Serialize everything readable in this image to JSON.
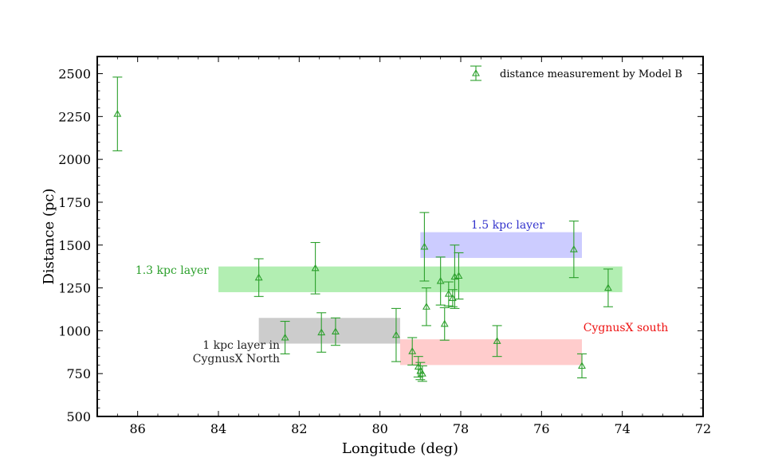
{
  "chart_data": {
    "type": "scatter",
    "title": "",
    "xlabel": "Longitude (deg)",
    "ylabel": "Distance (pc)",
    "xlim": [
      87,
      72
    ],
    "ylim": [
      500,
      2600
    ],
    "x_inverted": true,
    "x_ticks": [
      86,
      84,
      82,
      80,
      78,
      76,
      74,
      72
    ],
    "x_tick_labels": [
      "86",
      "84",
      "82",
      "80",
      "78",
      "76",
      "74",
      "72"
    ],
    "y_ticks": [
      500,
      750,
      1000,
      1250,
      1500,
      1750,
      2000,
      2250,
      2500
    ],
    "y_tick_labels": [
      "500",
      "750",
      "1000",
      "1250",
      "1500",
      "1750",
      "2000",
      "2250",
      "2500"
    ],
    "grid": false,
    "legend": {
      "position": "top-right",
      "entries": [
        "distance measurement by Model B"
      ]
    },
    "series": [
      {
        "name": "distance measurement by Model B",
        "marker": "open-triangle",
        "color": "#2ca02c",
        "points": [
          {
            "x": 86.5,
            "y": 2265,
            "err": 215
          },
          {
            "x": 83.0,
            "y": 1310,
            "err": 110
          },
          {
            "x": 82.35,
            "y": 960,
            "err": 95
          },
          {
            "x": 81.6,
            "y": 1365,
            "err": 150
          },
          {
            "x": 81.45,
            "y": 990,
            "err": 115
          },
          {
            "x": 81.1,
            "y": 995,
            "err": 80
          },
          {
            "x": 79.6,
            "y": 975,
            "err": 155
          },
          {
            "x": 79.2,
            "y": 880,
            "err": 80
          },
          {
            "x": 79.05,
            "y": 790,
            "err": 60
          },
          {
            "x": 79.0,
            "y": 765,
            "err": 50
          },
          {
            "x": 78.95,
            "y": 750,
            "err": 45
          },
          {
            "x": 78.9,
            "y": 1490,
            "err": 200
          },
          {
            "x": 78.85,
            "y": 1140,
            "err": 110
          },
          {
            "x": 78.5,
            "y": 1290,
            "err": 140
          },
          {
            "x": 78.4,
            "y": 1040,
            "err": 95
          },
          {
            "x": 78.3,
            "y": 1215,
            "err": 70
          },
          {
            "x": 78.2,
            "y": 1190,
            "err": 50
          },
          {
            "x": 78.15,
            "y": 1315,
            "err": 185
          },
          {
            "x": 78.05,
            "y": 1320,
            "err": 135
          },
          {
            "x": 77.1,
            "y": 940,
            "err": 90
          },
          {
            "x": 75.2,
            "y": 1475,
            "err": 165
          },
          {
            "x": 75.0,
            "y": 795,
            "err": 70
          },
          {
            "x": 74.35,
            "y": 1250,
            "err": 110
          }
        ]
      }
    ],
    "regions": [
      {
        "name": "1.5 kpc layer",
        "x": [
          79.0,
          75.0
        ],
        "y": [
          1425,
          1575
        ],
        "color": "#9999ff",
        "label": "1.5 kpc layer",
        "label_color": "#3333cc"
      },
      {
        "name": "1.3 kpc layer",
        "x": [
          84.0,
          74.0
        ],
        "y": [
          1225,
          1375
        ],
        "color": "#66dd66",
        "label": "1.3 kpc layer",
        "label_color": "#2ca02c"
      },
      {
        "name": "1 kpc layer in CygnusX North",
        "x": [
          83.0,
          79.5
        ],
        "y": [
          925,
          1075
        ],
        "color": "#999999",
        "label_lines": [
          "1 kpc layer in",
          "CygnusX North"
        ],
        "label_color": "#222222"
      },
      {
        "name": "CygnusX south",
        "x": [
          79.5,
          75.0
        ],
        "y": [
          800,
          950
        ],
        "color": "#ff9999",
        "label": "CygnusX south",
        "label_color": "#ee1111"
      }
    ]
  }
}
